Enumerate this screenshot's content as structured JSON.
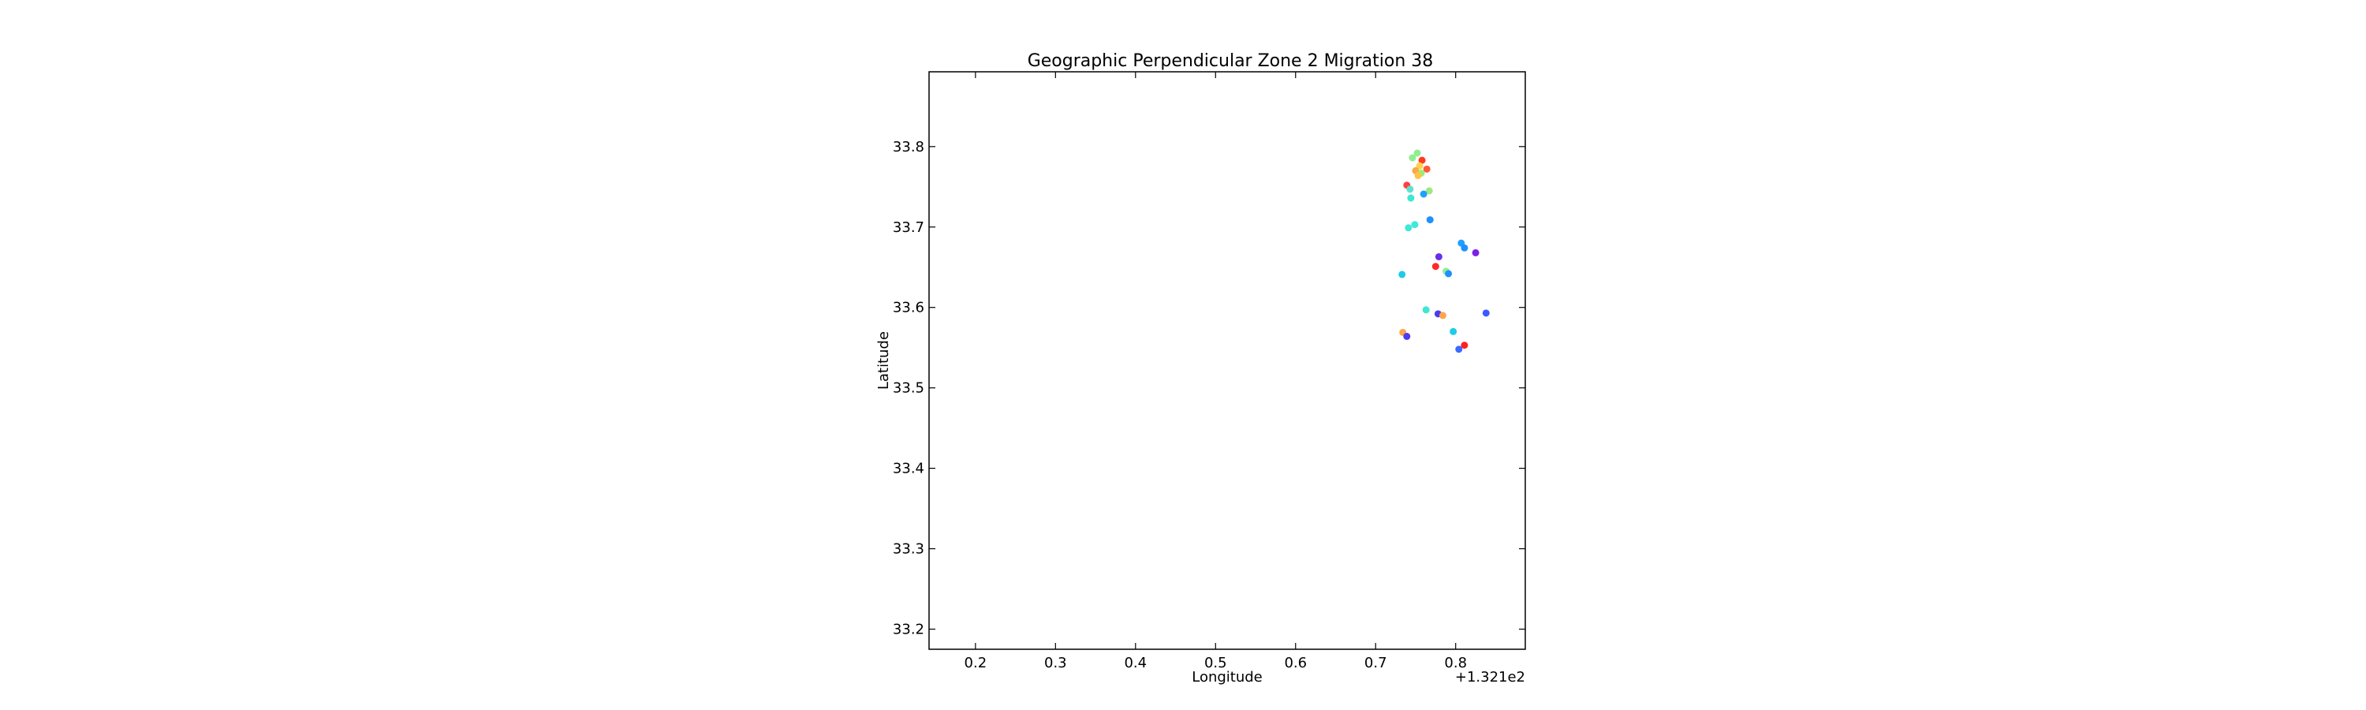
{
  "chart_data": {
    "type": "scatter",
    "title": "Geographic Perpendicular Zone 2 Migration 38",
    "xlabel": "Longitude",
    "ylabel": "Latitude",
    "x_offset_label": "+1.321e2",
    "xlim": [
      0.142,
      0.887
    ],
    "ylim": [
      33.175,
      33.893
    ],
    "x_ticks": [
      "0.2",
      "0.3",
      "0.4",
      "0.5",
      "0.6",
      "0.7",
      "0.8"
    ],
    "y_ticks": [
      "33.2",
      "33.3",
      "33.4",
      "33.5",
      "33.6",
      "33.7",
      "33.8"
    ],
    "grid": false,
    "points": [
      {
        "x": 0.752,
        "y": 33.792,
        "color": "#90ee90"
      },
      {
        "x": 0.746,
        "y": 33.786,
        "color": "#90ee90"
      },
      {
        "x": 0.758,
        "y": 33.783,
        "color": "#ff3c1e"
      },
      {
        "x": 0.755,
        "y": 33.776,
        "color": "#ffd24a"
      },
      {
        "x": 0.75,
        "y": 33.77,
        "color": "#ffa54a"
      },
      {
        "x": 0.764,
        "y": 33.772,
        "color": "#ff5a3c"
      },
      {
        "x": 0.757,
        "y": 33.767,
        "color": "#9aee7a"
      },
      {
        "x": 0.753,
        "y": 33.764,
        "color": "#ffc34a"
      },
      {
        "x": 0.739,
        "y": 33.752,
        "color": "#ff4040"
      },
      {
        "x": 0.743,
        "y": 33.747,
        "color": "#60e0d0"
      },
      {
        "x": 0.767,
        "y": 33.745,
        "color": "#a0e880"
      },
      {
        "x": 0.744,
        "y": 33.736,
        "color": "#3ce8d0"
      },
      {
        "x": 0.76,
        "y": 33.741,
        "color": "#1ea0ff"
      },
      {
        "x": 0.768,
        "y": 33.709,
        "color": "#1e90ff"
      },
      {
        "x": 0.749,
        "y": 33.703,
        "color": "#40e8d8"
      },
      {
        "x": 0.741,
        "y": 33.699,
        "color": "#40e8d8"
      },
      {
        "x": 0.807,
        "y": 33.68,
        "color": "#1ea0ff"
      },
      {
        "x": 0.811,
        "y": 33.674,
        "color": "#1e90ff"
      },
      {
        "x": 0.825,
        "y": 33.668,
        "color": "#7b1fe8"
      },
      {
        "x": 0.779,
        "y": 33.663,
        "color": "#6a2ee8"
      },
      {
        "x": 0.775,
        "y": 33.651,
        "color": "#ff2a2a"
      },
      {
        "x": 0.788,
        "y": 33.645,
        "color": "#90ee90"
      },
      {
        "x": 0.791,
        "y": 33.642,
        "color": "#1e90ff"
      },
      {
        "x": 0.733,
        "y": 33.641,
        "color": "#1ecbe8"
      },
      {
        "x": 0.763,
        "y": 33.597,
        "color": "#3ce8d0"
      },
      {
        "x": 0.778,
        "y": 33.592,
        "color": "#4a3cf0"
      },
      {
        "x": 0.784,
        "y": 33.59,
        "color": "#ffa54a"
      },
      {
        "x": 0.838,
        "y": 33.593,
        "color": "#3c5aff"
      },
      {
        "x": 0.734,
        "y": 33.569,
        "color": "#ffa54a"
      },
      {
        "x": 0.739,
        "y": 33.564,
        "color": "#4a3cf0"
      },
      {
        "x": 0.797,
        "y": 33.57,
        "color": "#1ecbe8"
      },
      {
        "x": 0.811,
        "y": 33.553,
        "color": "#ff2020"
      },
      {
        "x": 0.804,
        "y": 33.548,
        "color": "#3c6aff"
      }
    ]
  }
}
